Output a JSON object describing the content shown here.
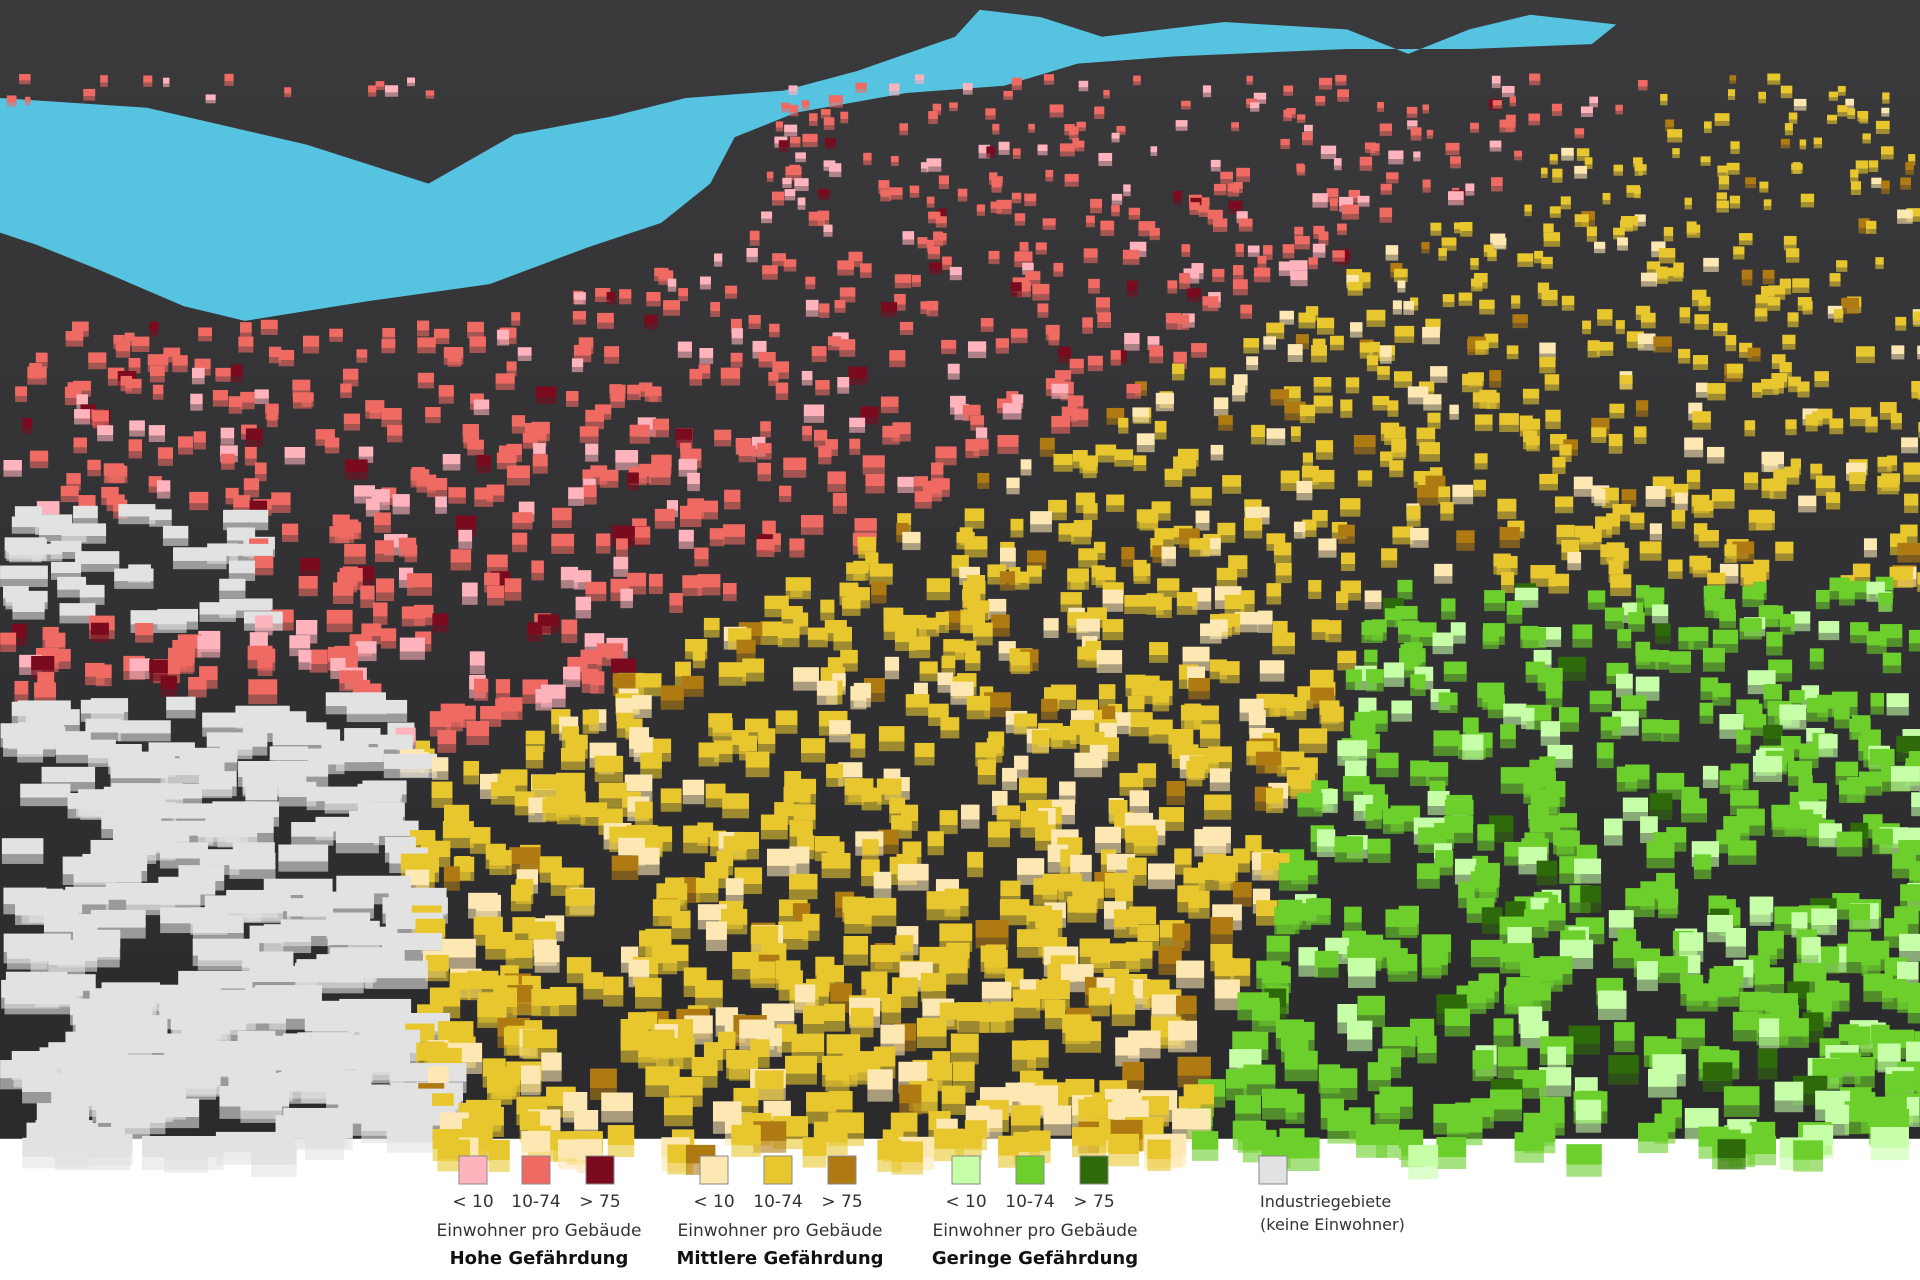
{
  "legend": {
    "groups": [
      {
        "swatches": [
          {
            "color": "#ffb3bd",
            "label": "< 10"
          },
          {
            "color": "#ef6a62",
            "label": "10-74"
          },
          {
            "color": "#7a0a1e",
            "label": "> 75"
          }
        ],
        "caption": "Einwohner pro Gebäude",
        "title": "Hohe Gefährdung"
      },
      {
        "swatches": [
          {
            "color": "#fde7b3",
            "label": "< 10"
          },
          {
            "color": "#e8c62e",
            "label": "10-74"
          },
          {
            "color": "#b07a12",
            "label": "> 75"
          }
        ],
        "caption": "Einwohner pro Gebäude",
        "title": "Mittlere Gefährdung"
      },
      {
        "swatches": [
          {
            "color": "#c6ffa8",
            "label": "< 10"
          },
          {
            "color": "#6ccf2c",
            "label": "10-74"
          },
          {
            "color": "#2e6a0a",
            "label": "> 75"
          }
        ],
        "caption": "Einwohner pro Gebäude",
        "title": "Geringe Gefährdung"
      }
    ],
    "industrial": {
      "color": "#e2e2e2",
      "lines": [
        "Industriegebiete",
        "(keine Einwohner)"
      ]
    }
  }
}
